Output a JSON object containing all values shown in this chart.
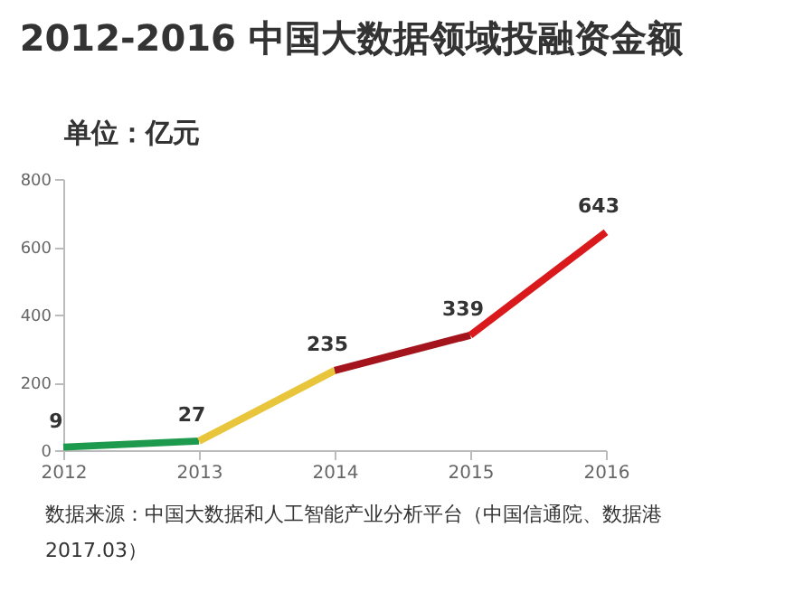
{
  "chart_data": {
    "type": "line",
    "title": "2012-2016 中国大数据领域投融资金额",
    "ylabel": "单位：亿元",
    "xlim": [
      2012,
      2016
    ],
    "xticks": [
      2012,
      2013,
      2014,
      2015,
      2016
    ],
    "ylim": [
      0,
      800
    ],
    "yticks": [
      0,
      200,
      400,
      600,
      800
    ],
    "grid": false,
    "marker": "none",
    "line_style": "solid",
    "series": [
      {
        "color": "#1e9a4e",
        "x": [
          2012,
          2013
        ],
        "values": [
          9,
          27
        ],
        "value_labels": [
          "9",
          "27"
        ]
      },
      {
        "color": "#e8c53a",
        "x": [
          2013,
          2014
        ],
        "values": [
          27,
          235
        ],
        "value_labels": [
          null,
          "235"
        ]
      },
      {
        "color": "#a3141c",
        "x": [
          2014,
          2015
        ],
        "values": [
          235,
          339
        ],
        "value_labels": [
          null,
          "339"
        ]
      },
      {
        "color": "#d9191c",
        "x": [
          2015,
          2016
        ],
        "values": [
          339,
          643
        ],
        "value_labels": [
          null,
          "643"
        ]
      }
    ],
    "annotations": [
      "数据来源：中国大数据和人工智能产业分析平台（中国信通院、数据港",
      "2017.03）"
    ]
  }
}
